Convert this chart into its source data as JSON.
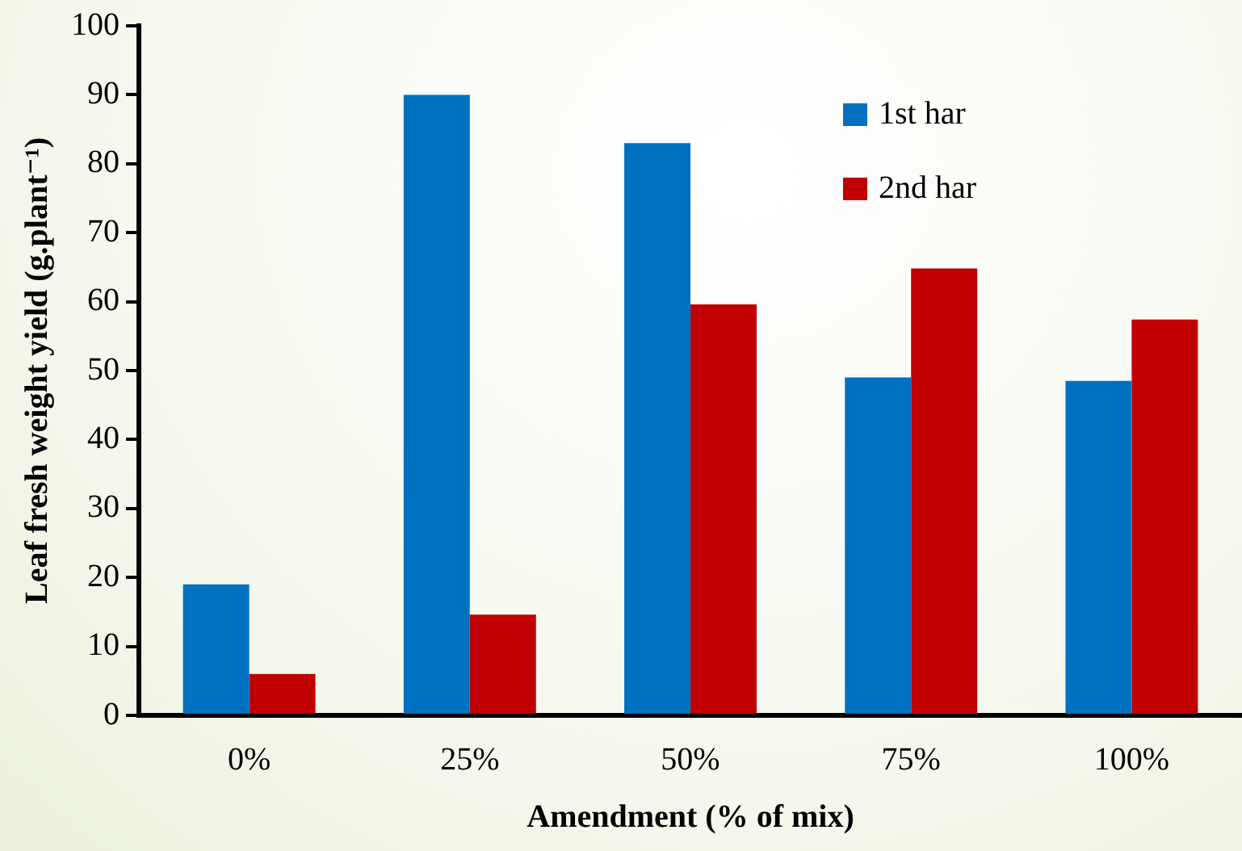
{
  "chart_data": {
    "type": "bar",
    "xlabel": "Amendment (% of mix)",
    "ylabel": "Leaf fresh weight yield (g.plant⁻¹)",
    "categories": [
      "0%",
      "25%",
      "50%",
      "75%",
      "100%"
    ],
    "series": [
      {
        "name": "1st har",
        "color": "#0070c0",
        "values": [
          19,
          90,
          83,
          49,
          48.5
        ]
      },
      {
        "name": "2nd har",
        "color": "#c00000",
        "values": [
          6,
          14.6,
          59.6,
          64.8,
          57.4
        ]
      }
    ],
    "ylim": [
      0,
      100
    ],
    "yticks": [
      0,
      10,
      20,
      30,
      40,
      50,
      60,
      70,
      80,
      90,
      100
    ],
    "grid": false,
    "legend": "top right"
  }
}
